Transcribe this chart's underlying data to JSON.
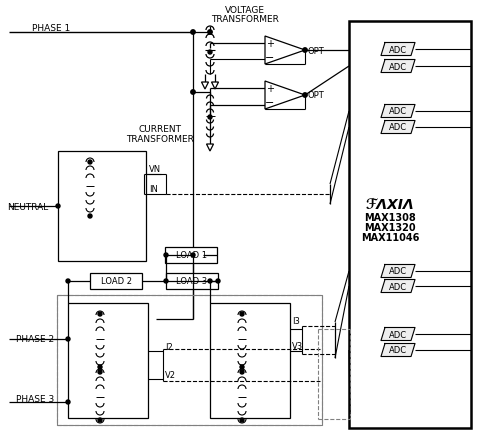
{
  "bg": "#ffffff",
  "lc": "#000000",
  "gc": "#808080",
  "phase1": "PHASE 1",
  "phase2": "PHASE 2",
  "phase3": "PHASE 3",
  "neutral": "NEUTRAL",
  "vt1": "VOLTAGE",
  "vt2": "TRANSFORMER",
  "ct1": "CURRENT",
  "ct2": "TRANSFORMER",
  "load1": "LOAD 1",
  "load2": "LOAD 2",
  "load3": "LOAD 3",
  "vn": "VN",
  "in_": "IN",
  "i2": "I2",
  "v2": "V2",
  "i3": "I3",
  "v3": "V3",
  "opt": "OPT",
  "adc": "ADC",
  "mx1": "MAX1308",
  "mx2": "MAX1320",
  "mx3": "MAX11046"
}
